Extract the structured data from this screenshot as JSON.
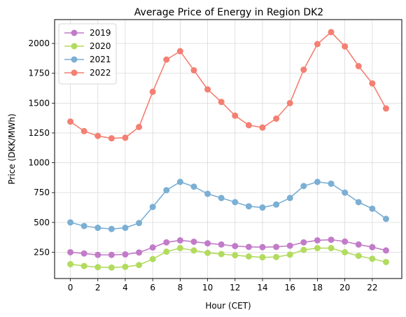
{
  "chart_data": {
    "type": "line",
    "title": "Average Price of Energy in Region DK2",
    "xlabel": "Hour (CET)",
    "ylabel": "Price (DKK/MWh)",
    "x": [
      0,
      1,
      2,
      3,
      4,
      5,
      6,
      7,
      8,
      9,
      10,
      11,
      12,
      13,
      14,
      15,
      16,
      17,
      18,
      19,
      20,
      21,
      22,
      23
    ],
    "xlim": [
      -1.15,
      24.15
    ],
    "ylim": [
      30,
      2200
    ],
    "xticks": [
      0,
      2,
      4,
      6,
      8,
      10,
      12,
      14,
      16,
      18,
      20,
      22
    ],
    "yticks": [
      250,
      500,
      750,
      1000,
      1250,
      1500,
      1750,
      2000
    ],
    "grid": true,
    "legend_position": "top-left",
    "series": [
      {
        "name": "2019",
        "color": "#c27bc8",
        "values": [
          250,
          240,
          228,
          228,
          232,
          248,
          290,
          333,
          350,
          338,
          325,
          315,
          302,
          295,
          293,
          295,
          305,
          333,
          350,
          355,
          340,
          315,
          293,
          265
        ]
      },
      {
        "name": "2020",
        "color": "#b2db5f",
        "values": [
          150,
          135,
          125,
          122,
          128,
          143,
          193,
          255,
          285,
          265,
          245,
          235,
          225,
          215,
          208,
          210,
          230,
          270,
          285,
          285,
          250,
          220,
          195,
          168
        ]
      },
      {
        "name": "2021",
        "color": "#7bafd4",
        "values": [
          500,
          470,
          455,
          445,
          455,
          495,
          630,
          770,
          840,
          800,
          740,
          705,
          670,
          635,
          625,
          650,
          705,
          805,
          840,
          825,
          750,
          670,
          615,
          530
        ]
      },
      {
        "name": "2022",
        "color": "#f47f72",
        "values": [
          1345,
          1265,
          1225,
          1205,
          1210,
          1300,
          1595,
          1865,
          1935,
          1775,
          1615,
          1510,
          1395,
          1315,
          1295,
          1370,
          1500,
          1780,
          1995,
          2095,
          1975,
          1810,
          1665,
          1455
        ]
      }
    ]
  }
}
